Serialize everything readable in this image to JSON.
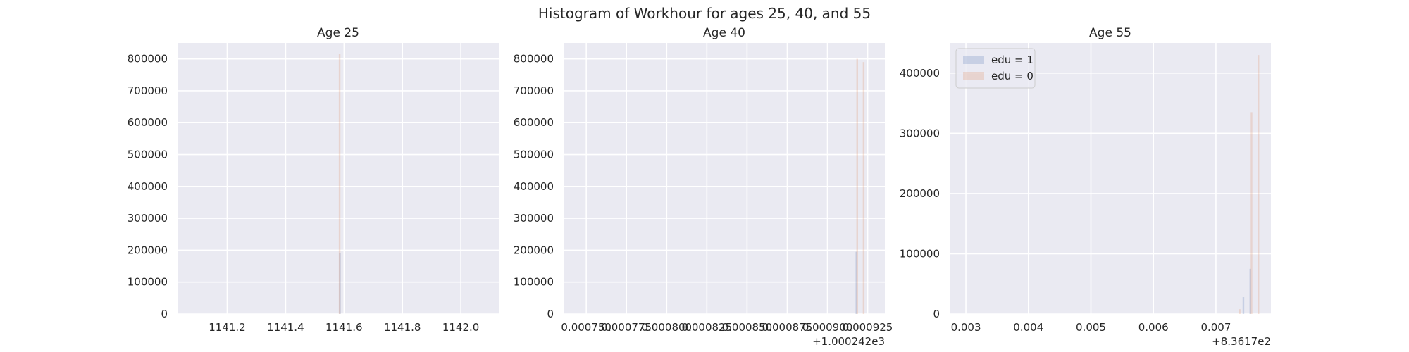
{
  "chart_data": {
    "title": "Histogram of Workhour for ages 25, 40, and 55",
    "type": "histogram",
    "colors": {
      "edu1": "#4c72b0",
      "edu0": "#dd8452",
      "background": "#eaeaf2",
      "grid": "#ffffff"
    },
    "legend": {
      "placement": "upper-left",
      "panel": 2,
      "entries": [
        "edu = 1",
        "edu = 0"
      ]
    },
    "panels": [
      {
        "title": "Age 25",
        "xlim": [
          1141.03,
          1142.13
        ],
        "ylim": [
          0,
          850000
        ],
        "xticks": [
          1141.2,
          1141.4,
          1141.6,
          1141.8,
          1142.0
        ],
        "xtick_labels": [
          "1141.2",
          "1141.4",
          "1141.6",
          "1141.8",
          "1142.0"
        ],
        "yticks": [
          0,
          100000,
          200000,
          300000,
          400000,
          500000,
          600000,
          700000,
          800000
        ],
        "ytick_labels": [
          "0",
          "100000",
          "200000",
          "300000",
          "400000",
          "500000",
          "600000",
          "700000",
          "800000"
        ],
        "offset_label": "",
        "series": [
          {
            "name": "edu = 1",
            "bars": [
              {
                "x": 1141.586,
                "height": 190000
              }
            ]
          },
          {
            "name": "edu = 0",
            "bars": [
              {
                "x": 1141.585,
                "height": 815000
              }
            ]
          }
        ]
      },
      {
        "title": "Age 40",
        "xlim": [
          0.0007359,
          0.0009357
        ],
        "ylim": [
          0,
          850000
        ],
        "xticks": [
          0.00075,
          0.000775,
          0.0008,
          0.000825,
          0.00085,
          0.000875,
          0.0009,
          0.000925
        ],
        "xtick_labels": [
          "0.000750",
          "0.000775",
          "0.000800",
          "0.000825",
          "0.000850",
          "0.000875",
          "0.000900",
          "0.000925"
        ],
        "yticks": [
          0,
          100000,
          200000,
          300000,
          400000,
          500000,
          600000,
          700000,
          800000
        ],
        "ytick_labels": [
          "0",
          "100000",
          "200000",
          "300000",
          "400000",
          "500000",
          "600000",
          "700000",
          "800000"
        ],
        "offset_label": "+1.000242e3",
        "series": [
          {
            "name": "edu = 1",
            "bars": [
              {
                "x": 0.000918,
                "height": 195000
              }
            ]
          },
          {
            "name": "edu = 0",
            "bars": [
              {
                "x": 0.0009185,
                "height": 800000
              },
              {
                "x": 0.0009225,
                "height": 790000
              }
            ]
          }
        ]
      },
      {
        "title": "Age 55",
        "xlim": [
          0.00274,
          0.00788
        ],
        "ylim": [
          0,
          450000
        ],
        "xticks": [
          0.003,
          0.004,
          0.005,
          0.006,
          0.007
        ],
        "xtick_labels": [
          "0.003",
          "0.004",
          "0.005",
          "0.006",
          "0.007"
        ],
        "yticks": [
          0,
          100000,
          200000,
          300000,
          400000
        ],
        "ytick_labels": [
          "0",
          "100000",
          "200000",
          "300000",
          "400000"
        ],
        "offset_label": "+8.3617e2",
        "series": [
          {
            "name": "edu = 1",
            "bars": [
              {
                "x": 0.00744,
                "height": 28000
              },
              {
                "x": 0.00755,
                "height": 75000
              }
            ]
          },
          {
            "name": "edu = 0",
            "bars": [
              {
                "x": 0.00738,
                "height": 8000
              },
              {
                "x": 0.00757,
                "height": 335000
              },
              {
                "x": 0.00768,
                "height": 430000
              }
            ]
          }
        ]
      }
    ]
  }
}
